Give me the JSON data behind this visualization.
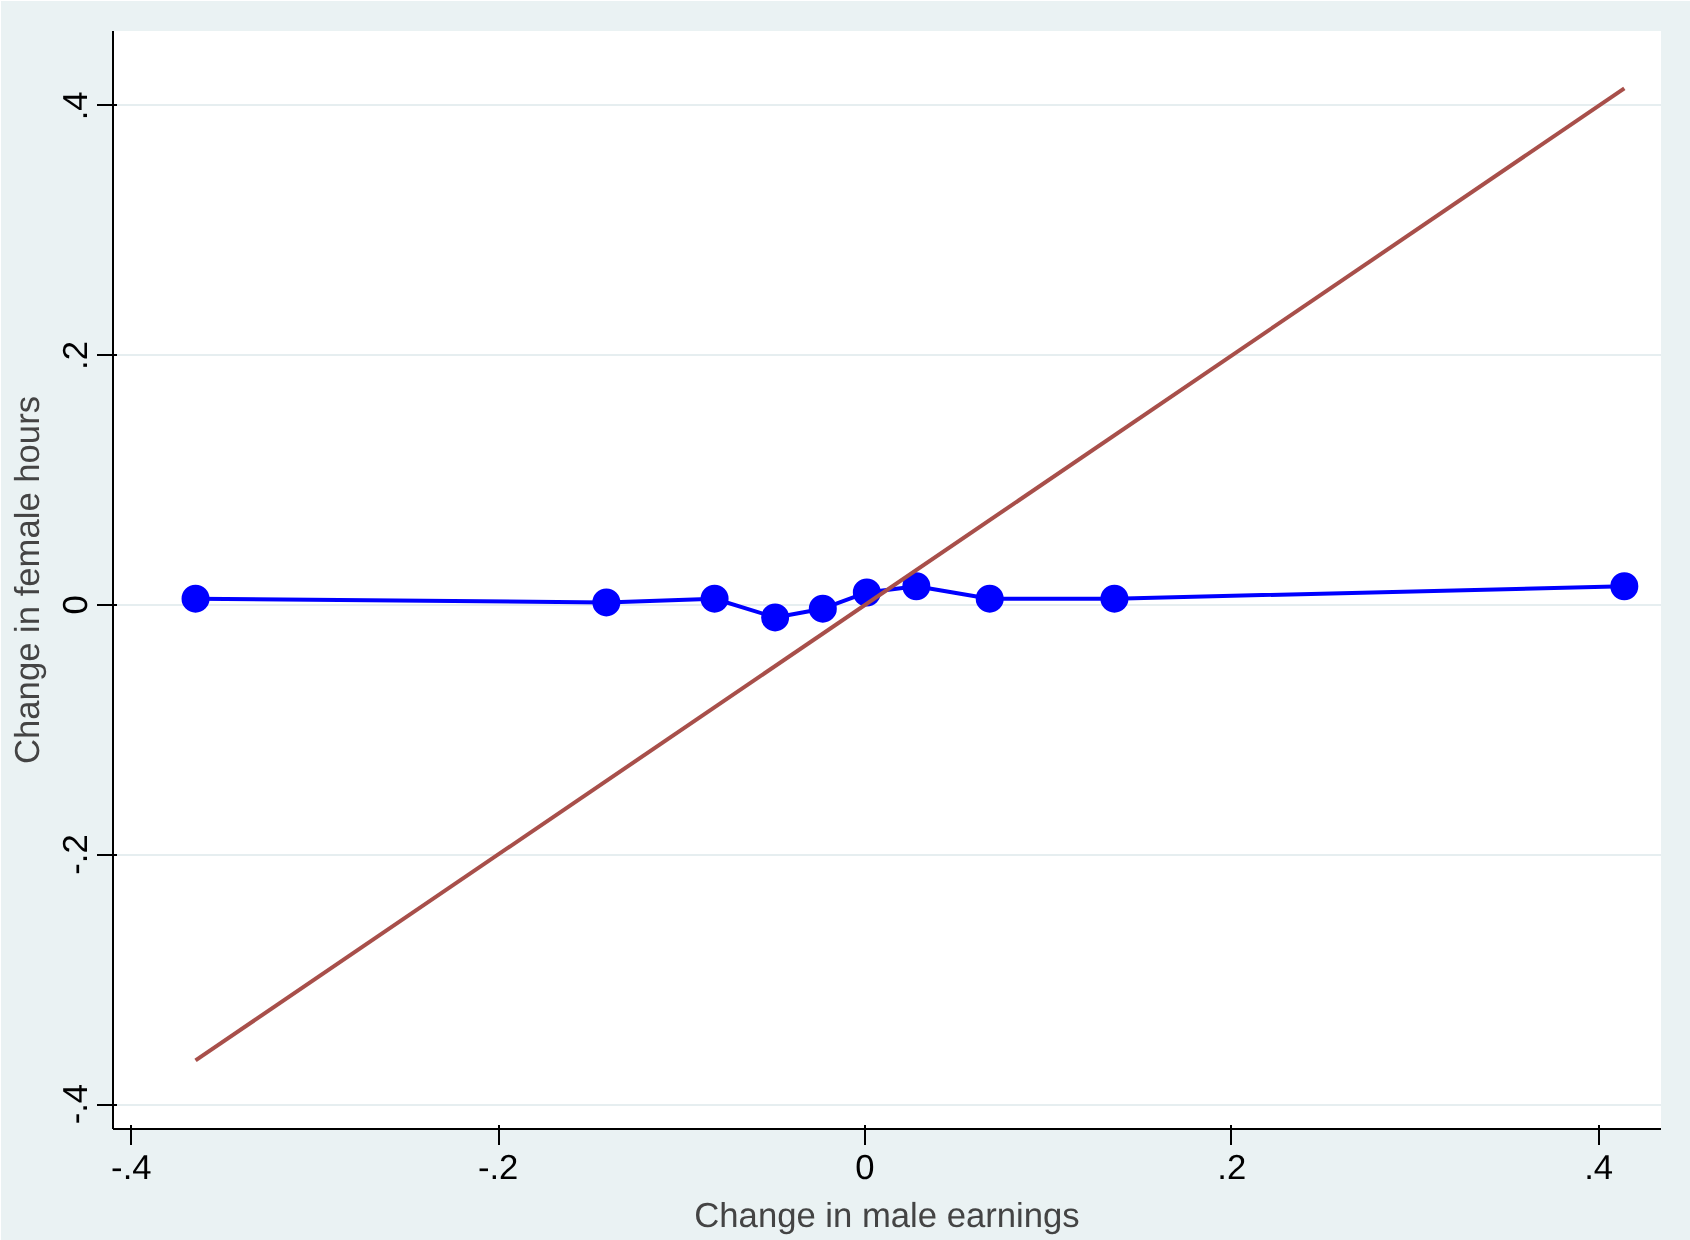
{
  "chart_data": {
    "type": "line",
    "xlabel": "Change in male earnings",
    "ylabel": "Change in female hours",
    "xlim": [
      -0.41,
      0.434
    ],
    "ylim": [
      -0.42,
      0.46
    ],
    "xticks": [
      {
        "value": -0.4,
        "label": "-.4"
      },
      {
        "value": -0.2,
        "label": "-.2"
      },
      0,
      {
        "value": 0.2,
        "label": ".2"
      },
      {
        "value": 0.4,
        "label": ".4"
      }
    ],
    "yticks": [
      {
        "value": -0.4,
        "label": "-.4"
      },
      {
        "value": -0.2,
        "label": "-.2"
      },
      0,
      {
        "value": 0.2,
        "label": ".2"
      },
      {
        "value": 0.4,
        "label": ".4"
      }
    ],
    "grid": "y",
    "series": [
      {
        "color": "#0000ff",
        "marker": "circle",
        "x": [
          -0.365,
          -0.141,
          -0.082,
          -0.049,
          -0.023,
          0.001,
          0.028,
          0.068,
          0.136,
          0.414
        ],
        "values": [
          0.005,
          0.002,
          0.005,
          -0.01,
          -0.003,
          0.01,
          0.015,
          0.005,
          0.005,
          0.015
        ]
      },
      {
        "color": "#a84f4a",
        "marker": "none",
        "x": [
          -0.365,
          0.414
        ],
        "values": [
          -0.365,
          0.414
        ]
      }
    ]
  }
}
